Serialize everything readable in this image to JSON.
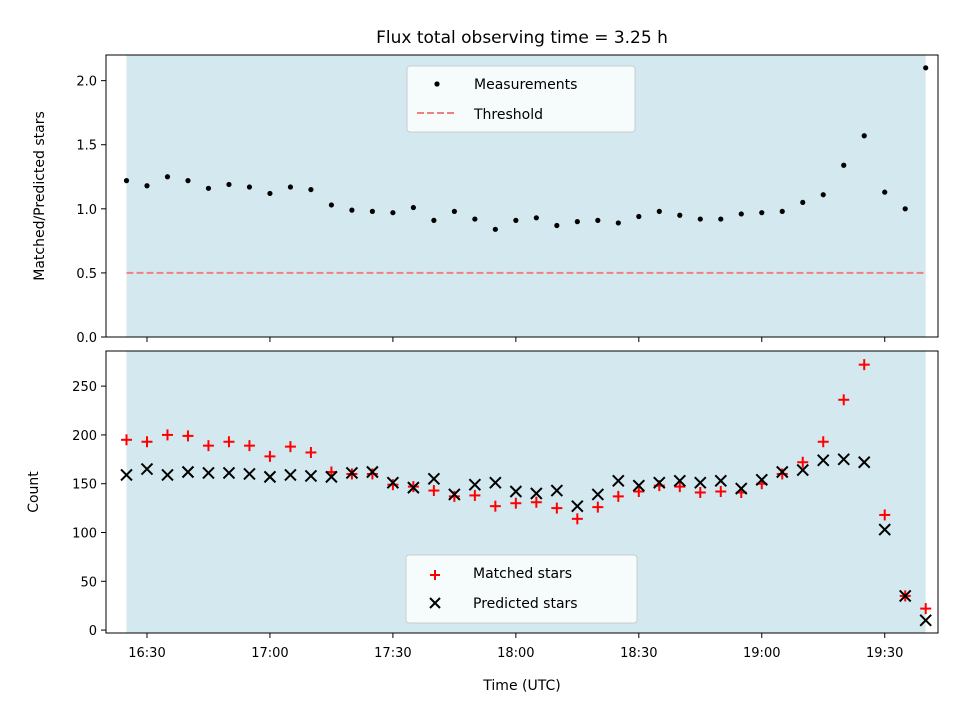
{
  "chart_data": {
    "title": "Flux total observing time = 3.25 h",
    "xlabel": "Time (UTC)",
    "x_ticks": [
      "16:30",
      "17:00",
      "17:30",
      "18:00",
      "18:30",
      "19:00",
      "19:30"
    ],
    "x_range": [
      "16:20",
      "19:43"
    ],
    "shaded_interval": [
      "16:25",
      "19:40"
    ],
    "shade_color": "#d3e9ef",
    "top": {
      "type": "scatter",
      "ylabel": "Matched/Predicted stars",
      "ylim": [
        0,
        2.2
      ],
      "y_ticks": [
        "0.0",
        "0.5",
        "1.0",
        "1.5",
        "2.0"
      ],
      "legend_position": "top-center",
      "threshold": {
        "name": "Threshold",
        "value": 0.5,
        "color": "#f08080",
        "style": "dashed"
      },
      "measurements": {
        "name": "Measurements",
        "color": "#000000",
        "x": [
          "16:25",
          "16:30",
          "16:35",
          "16:40",
          "16:45",
          "16:50",
          "16:55",
          "17:00",
          "17:05",
          "17:10",
          "17:15",
          "17:20",
          "17:25",
          "17:30",
          "17:35",
          "17:40",
          "17:45",
          "17:50",
          "17:55",
          "18:00",
          "18:05",
          "18:10",
          "18:15",
          "18:20",
          "18:25",
          "18:30",
          "18:35",
          "18:40",
          "18:45",
          "18:50",
          "18:55",
          "19:00",
          "19:05",
          "19:10",
          "19:15",
          "19:20",
          "19:25",
          "19:30",
          "19:35",
          "19:40"
        ],
        "y": [
          1.22,
          1.18,
          1.25,
          1.22,
          1.16,
          1.19,
          1.17,
          1.12,
          1.17,
          1.15,
          1.03,
          0.99,
          0.98,
          0.97,
          1.01,
          0.91,
          0.98,
          0.92,
          0.84,
          0.91,
          0.93,
          0.87,
          0.9,
          0.91,
          0.89,
          0.94,
          0.98,
          0.95,
          0.92,
          0.92,
          0.96,
          0.97,
          0.98,
          1.05,
          1.11,
          1.34,
          1.57,
          1.13,
          1.0,
          2.1
        ]
      }
    },
    "bottom": {
      "type": "scatter",
      "ylabel": "Count",
      "ylim": [
        -3,
        286
      ],
      "y_ticks": [
        "0",
        "50",
        "100",
        "150",
        "200",
        "250"
      ],
      "legend_position": "bottom-center",
      "x": [
        "16:25",
        "16:30",
        "16:35",
        "16:40",
        "16:45",
        "16:50",
        "16:55",
        "17:00",
        "17:05",
        "17:10",
        "17:15",
        "17:20",
        "17:25",
        "17:30",
        "17:35",
        "17:40",
        "17:45",
        "17:50",
        "17:55",
        "18:00",
        "18:05",
        "18:10",
        "18:15",
        "18:20",
        "18:25",
        "18:30",
        "18:35",
        "18:40",
        "18:45",
        "18:50",
        "18:55",
        "19:00",
        "19:05",
        "19:10",
        "19:15",
        "19:20",
        "19:25",
        "19:30",
        "19:35",
        "19:40"
      ],
      "series": [
        {
          "name": "Matched stars",
          "marker": "plus",
          "color": "#ff0000",
          "values": [
            195,
            193,
            200,
            199,
            189,
            193,
            189,
            178,
            188,
            182,
            162,
            160,
            160,
            149,
            147,
            143,
            137,
            138,
            127,
            130,
            131,
            125,
            114,
            126,
            137,
            142,
            148,
            147,
            141,
            142,
            141,
            150,
            160,
            172,
            193,
            236,
            272,
            118,
            35,
            22
          ]
        },
        {
          "name": "Predicted stars",
          "marker": "x",
          "color": "#000000",
          "values": [
            159,
            165,
            159,
            162,
            161,
            161,
            160,
            157,
            159,
            158,
            157,
            161,
            162,
            151,
            146,
            155,
            139,
            149,
            151,
            142,
            140,
            143,
            127,
            139,
            153,
            148,
            151,
            153,
            151,
            153,
            145,
            154,
            162,
            164,
            174,
            175,
            172,
            103,
            35,
            10
          ]
        }
      ]
    }
  }
}
